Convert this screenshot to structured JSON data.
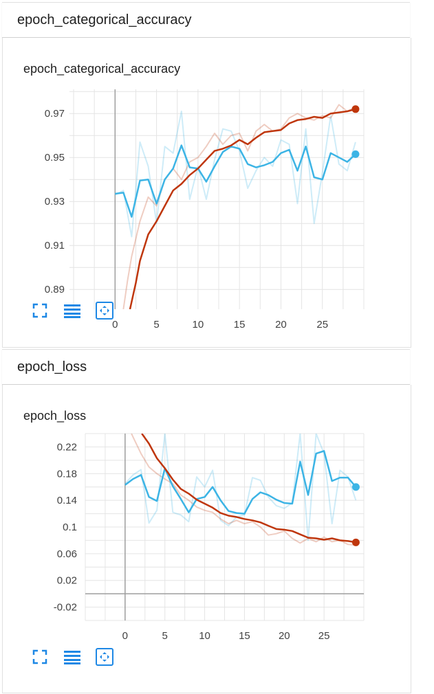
{
  "sections": [
    {
      "header": "epoch_categorical_accuracy",
      "card_title": "epoch_categorical_accuracy",
      "chart_data": {
        "type": "line",
        "title": "epoch_categorical_accuracy",
        "xlim": [
          -5.5,
          30
        ],
        "ylim": [
          0.881,
          0.981
        ],
        "x_ticks": [
          0,
          5,
          10,
          15,
          20,
          25
        ],
        "y_ticks": [
          0.89,
          0.91,
          0.93,
          0.95,
          0.97
        ],
        "y_tick_labels": [
          "0.89",
          "0.91",
          "0.93",
          "0.95",
          "0.97"
        ],
        "grid": true,
        "series": [
          {
            "color": "#3cb4e5",
            "smoothed": true,
            "x": [
              0,
              1,
              2,
              3,
              4,
              5,
              6,
              7,
              8,
              9,
              10,
              11,
              12,
              13,
              14,
              15,
              16,
              17,
              18,
              19,
              20,
              21,
              22,
              23,
              24,
              25,
              26,
              27,
              28,
              29
            ],
            "y": [
              0.9335,
              0.934,
              0.923,
              0.9395,
              0.94,
              0.929,
              0.94,
              0.945,
              0.9555,
              0.9455,
              0.945,
              0.939,
              0.946,
              0.9525,
              0.955,
              0.954,
              0.947,
              0.9455,
              0.9465,
              0.948,
              0.952,
              0.9535,
              0.944,
              0.955,
              0.941,
              0.94,
              0.952,
              0.95,
              0.948,
              0.9515
            ]
          },
          {
            "color": "#3cb4e5",
            "smoothed": false,
            "x": [
              0,
              1,
              2,
              3,
              4,
              5,
              6,
              7,
              8,
              9,
              10,
              11,
              12,
              13,
              14,
              15,
              16,
              17,
              18,
              19,
              20,
              21,
              22,
              23,
              24,
              25,
              26,
              27,
              28,
              29
            ],
            "y": [
              0.933,
              0.935,
              0.914,
              0.957,
              0.946,
              0.92,
              0.955,
              0.952,
              0.971,
              0.931,
              0.946,
              0.931,
              0.949,
              0.963,
              0.962,
              0.953,
              0.936,
              0.944,
              0.95,
              0.946,
              0.958,
              0.956,
              0.929,
              0.963,
              0.92,
              0.943,
              0.969,
              0.947,
              0.944,
              0.957
            ]
          },
          {
            "color": "#bf360c",
            "smoothed": true,
            "x": [
              1.8,
              2.5,
              3,
              4,
              5,
              6,
              7,
              8,
              9,
              10,
              11,
              12,
              13,
              14,
              15,
              16,
              17,
              18,
              19,
              20,
              21,
              22,
              23,
              24,
              25,
              26,
              27,
              28,
              29
            ],
            "y": [
              0.881,
              0.893,
              0.903,
              0.915,
              0.921,
              0.928,
              0.935,
              0.938,
              0.942,
              0.945,
              0.949,
              0.953,
              0.954,
              0.9555,
              0.958,
              0.956,
              0.959,
              0.9615,
              0.962,
              0.9625,
              0.9655,
              0.967,
              0.9675,
              0.9685,
              0.968,
              0.97,
              0.9705,
              0.971,
              0.972
            ]
          },
          {
            "color": "#bf360c",
            "smoothed": false,
            "x": [
              1,
              1.5,
              2,
              3,
              4,
              5,
              6,
              7,
              8,
              9,
              10,
              11,
              12,
              13,
              14,
              15,
              16,
              17,
              18,
              19,
              20,
              21,
              22,
              23,
              24,
              25,
              26,
              27,
              28,
              29
            ],
            "y": [
              0.881,
              0.894,
              0.905,
              0.921,
              0.932,
              0.928,
              0.94,
              0.945,
              0.94,
              0.948,
              0.95,
              0.955,
              0.961,
              0.956,
              0.96,
              0.961,
              0.953,
              0.962,
              0.965,
              0.962,
              0.963,
              0.968,
              0.97,
              0.968,
              0.967,
              0.969,
              0.968,
              0.974,
              0.971,
              0.973
            ]
          }
        ]
      }
    },
    {
      "header": "epoch_loss",
      "card_title": "epoch_loss",
      "chart_data": {
        "type": "line",
        "title": "epoch_loss",
        "xlim": [
          -5,
          30
        ],
        "ylim": [
          -0.04,
          0.24
        ],
        "x_ticks": [
          0,
          5,
          10,
          15,
          20,
          25
        ],
        "y_ticks": [
          -0.02,
          0.02,
          0.06,
          0.1,
          0.14,
          0.18,
          0.22
        ],
        "y_tick_labels": [
          "-0.02",
          "0.02",
          "0.06",
          "0.1",
          "0.14",
          "0.18",
          "0.22"
        ],
        "grid": true,
        "series": [
          {
            "color": "#3cb4e5",
            "smoothed": true,
            "x": [
              0,
              1,
              2,
              3,
              4,
              5,
              6,
              7,
              8,
              9,
              10,
              11,
              12,
              13,
              14,
              15,
              16,
              17,
              18,
              19,
              20,
              21,
              22,
              23,
              24,
              25,
              26,
              27,
              28,
              29
            ],
            "y": [
              0.163,
              0.172,
              0.178,
              0.145,
              0.139,
              0.188,
              0.161,
              0.142,
              0.122,
              0.142,
              0.145,
              0.16,
              0.14,
              0.124,
              0.121,
              0.12,
              0.142,
              0.152,
              0.148,
              0.141,
              0.136,
              0.135,
              0.198,
              0.148,
              0.21,
              0.214,
              0.169,
              0.174,
              0.174,
              0.16
            ]
          },
          {
            "color": "#3cb4e5",
            "smoothed": false,
            "x": [
              0,
              1,
              2,
              3,
              4,
              5,
              6,
              7,
              8,
              9,
              10,
              11,
              12,
              13,
              14,
              15,
              16,
              17,
              18,
              19,
              20,
              21,
              22,
              23,
              24,
              25,
              26,
              27,
              28,
              29
            ],
            "y": [
              0.165,
              0.178,
              0.186,
              0.106,
              0.125,
              0.24,
              0.122,
              0.118,
              0.108,
              0.175,
              0.16,
              0.185,
              0.11,
              0.102,
              0.115,
              0.118,
              0.174,
              0.17,
              0.145,
              0.132,
              0.128,
              0.136,
              0.24,
              0.08,
              0.24,
              0.21,
              0.105,
              0.185,
              0.175,
              0.14
            ]
          },
          {
            "color": "#bf360c",
            "smoothed": true,
            "x": [
              2.1,
              3,
              4,
              5,
              6,
              7,
              8,
              9,
              10,
              11,
              12,
              13,
              14,
              15,
              16,
              17,
              18,
              19,
              20,
              21,
              22,
              23,
              24,
              25,
              26,
              27,
              28,
              29
            ],
            "y": [
              0.24,
              0.225,
              0.203,
              0.188,
              0.171,
              0.157,
              0.15,
              0.141,
              0.135,
              0.129,
              0.121,
              0.117,
              0.115,
              0.112,
              0.11,
              0.107,
              0.102,
              0.097,
              0.096,
              0.094,
              0.089,
              0.084,
              0.083,
              0.081,
              0.083,
              0.08,
              0.079,
              0.077
            ]
          },
          {
            "color": "#bf360c",
            "smoothed": false,
            "x": [
              0.8,
              1,
              2,
              3,
              4,
              5,
              6,
              7,
              8,
              9,
              10,
              11,
              12,
              13,
              14,
              15,
              16,
              17,
              18,
              19,
              20,
              21,
              22,
              23,
              24,
              25,
              26,
              27,
              28,
              29
            ],
            "y": [
              0.24,
              0.235,
              0.21,
              0.19,
              0.18,
              0.172,
              0.165,
              0.148,
              0.14,
              0.13,
              0.125,
              0.122,
              0.112,
              0.105,
              0.11,
              0.105,
              0.108,
              0.1,
              0.088,
              0.09,
              0.094,
              0.083,
              0.076,
              0.083,
              0.078,
              0.085,
              0.078,
              0.08,
              0.074,
              0.073
            ]
          }
        ]
      }
    }
  ],
  "toolbar": [
    {
      "icon": "fullscreen-icon"
    },
    {
      "icon": "log-scale-icon"
    },
    {
      "icon": "fit-domain-icon"
    }
  ],
  "colors": {
    "accent": "#1e88e5",
    "blue_series": "#3cb4e5",
    "orange_series": "#bf360c"
  }
}
